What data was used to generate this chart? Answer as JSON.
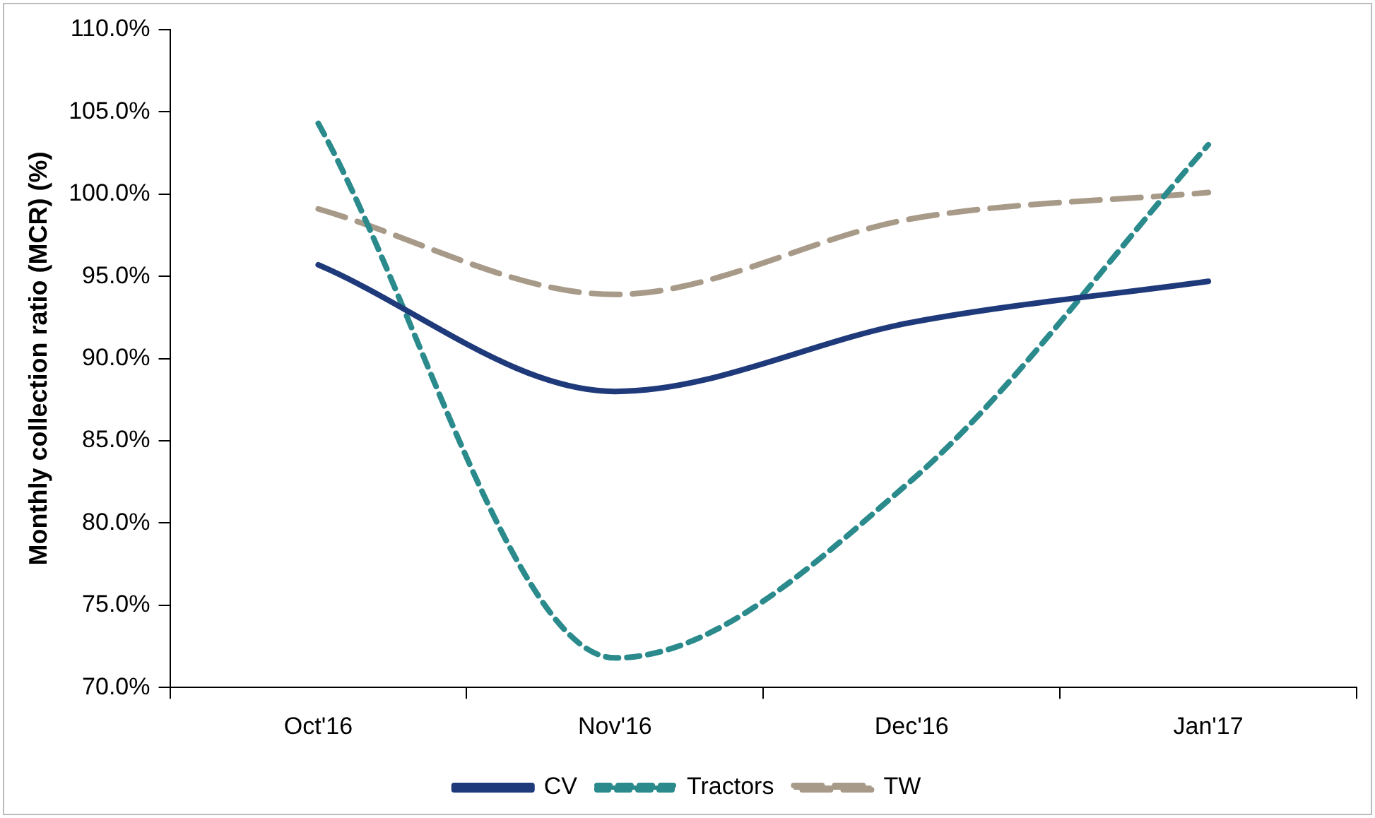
{
  "chart_data": {
    "type": "line",
    "ylabel": "Monthly collection ratio (MCR) (%)",
    "categories": [
      "Oct'16",
      "Nov'16",
      "Dec'16",
      "Jan'17"
    ],
    "series": [
      {
        "name": "CV",
        "color": "#1f3a7a",
        "line_style": "solid",
        "values": [
          95.7,
          88.0,
          92.2,
          94.7
        ]
      },
      {
        "name": "Tractors",
        "color": "#2a8a8c",
        "line_style": "dotted",
        "values": [
          104.3,
          71.8,
          82.6,
          103.0
        ]
      },
      {
        "name": "TW",
        "color": "#a89a88",
        "line_style": "dashed",
        "values": [
          99.1,
          93.9,
          98.5,
          100.1
        ]
      }
    ],
    "ylim": [
      70,
      110
    ],
    "yticks": [
      {
        "value": 70,
        "label": "70.0%"
      },
      {
        "value": 75,
        "label": "75.0%"
      },
      {
        "value": 80,
        "label": "80.0%"
      },
      {
        "value": 85,
        "label": "85.0%"
      },
      {
        "value": 90,
        "label": "90.0%"
      },
      {
        "value": 95,
        "label": "95.0%"
      },
      {
        "value": 100,
        "label": "100.0%"
      },
      {
        "value": 105,
        "label": "105.0%"
      },
      {
        "value": 110,
        "label": "110.0%"
      }
    ],
    "grid": false,
    "legend": "bottom",
    "marker": "none"
  }
}
